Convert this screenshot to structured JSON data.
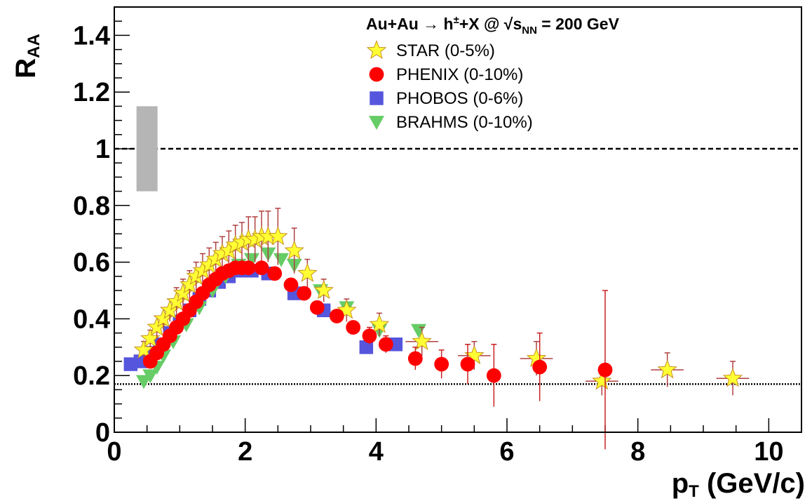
{
  "chart_data": {
    "type": "scatter",
    "title": "",
    "legend_header": "Au+Au → h±+X  @ √sNN = 200 GeV",
    "legend_header_parts": {
      "main": "Au+Au → h",
      "sup": "±",
      "mid": "+X  @ √",
      "s": "s",
      "sub": "NN",
      "end": " = 200 GeV"
    },
    "legend_position": "top-right",
    "xlabel": "p",
    "xlabel_sub": "T",
    "xlabel_units": " (GeV/c)",
    "ylabel": "R",
    "ylabel_sub": "AA",
    "xlim": [
      0,
      10.5
    ],
    "ylim": [
      0,
      1.5
    ],
    "x_ticks": [
      0,
      2,
      4,
      6,
      8,
      10
    ],
    "x_tick_labels": [
      "0",
      "2",
      "4",
      "6",
      "8",
      "10"
    ],
    "y_ticks": [
      0,
      0.2,
      0.4,
      0.6,
      0.8,
      1,
      1.2,
      1.4
    ],
    "y_tick_labels": [
      "0",
      "0.2",
      "0.4",
      "0.6",
      "0.8",
      "1",
      "1.2",
      "1.4"
    ],
    "grid": false,
    "reference_lines": [
      {
        "y": 1.0,
        "style": "dashed"
      },
      {
        "y": 0.17,
        "style": "dotted"
      }
    ],
    "normalization_band": {
      "x": 0.5,
      "y_low": 0.85,
      "y_high": 1.15,
      "color": "#b5b5b5"
    },
    "series": [
      {
        "name": "STAR (0-5%)",
        "marker": "star",
        "color": "#ffff33",
        "x": [
          0.45,
          0.55,
          0.65,
          0.75,
          0.85,
          0.95,
          1.05,
          1.15,
          1.25,
          1.35,
          1.45,
          1.55,
          1.65,
          1.75,
          1.85,
          1.95,
          2.05,
          2.15,
          2.25,
          2.35,
          2.5,
          2.75,
          2.95,
          3.2,
          3.55,
          4.05,
          4.7,
          5.5,
          6.45,
          7.45,
          8.45,
          9.45
        ],
        "y": [
          0.29,
          0.33,
          0.37,
          0.4,
          0.43,
          0.46,
          0.49,
          0.52,
          0.55,
          0.57,
          0.59,
          0.61,
          0.63,
          0.64,
          0.66,
          0.67,
          0.68,
          0.68,
          0.69,
          0.69,
          0.69,
          0.64,
          0.56,
          0.5,
          0.43,
          0.38,
          0.32,
          0.27,
          0.26,
          0.18,
          0.22,
          0.19
        ],
        "err": [
          0.03,
          0.03,
          0.04,
          0.04,
          0.04,
          0.05,
          0.05,
          0.05,
          0.05,
          0.06,
          0.06,
          0.06,
          0.06,
          0.07,
          0.07,
          0.07,
          0.08,
          0.08,
          0.09,
          0.09,
          0.1,
          0.08,
          0.05,
          0.04,
          0.04,
          0.04,
          0.05,
          0.05,
          0.06,
          0.05,
          0.06,
          0.06
        ],
        "xerr": [
          0,
          0,
          0,
          0,
          0,
          0,
          0,
          0,
          0,
          0,
          0,
          0,
          0,
          0,
          0,
          0,
          0,
          0,
          0,
          0,
          0,
          0,
          0,
          0,
          0,
          0,
          0.25,
          0.25,
          0.25,
          0.25,
          0.25,
          0.25
        ]
      },
      {
        "name": "PHENIX (0-10%)",
        "marker": "circle",
        "color": "#ff0000",
        "x": [
          0.55,
          0.65,
          0.75,
          0.85,
          0.95,
          1.05,
          1.15,
          1.25,
          1.35,
          1.45,
          1.55,
          1.65,
          1.75,
          1.85,
          1.95,
          2.05,
          2.25,
          2.45,
          2.7,
          2.9,
          3.1,
          3.4,
          3.65,
          3.9,
          4.15,
          4.6,
          5.0,
          5.4,
          5.8,
          6.5,
          7.5
        ],
        "y": [
          0.25,
          0.28,
          0.31,
          0.34,
          0.37,
          0.4,
          0.43,
          0.46,
          0.49,
          0.52,
          0.54,
          0.56,
          0.57,
          0.58,
          0.58,
          0.58,
          0.58,
          0.56,
          0.52,
          0.49,
          0.44,
          0.41,
          0.37,
          0.34,
          0.31,
          0.26,
          0.24,
          0.24,
          0.2,
          0.23,
          0.22
        ],
        "err": [
          0.01,
          0.01,
          0.01,
          0.01,
          0.01,
          0.01,
          0.01,
          0.01,
          0.01,
          0.01,
          0.01,
          0.01,
          0.01,
          0.01,
          0.01,
          0.01,
          0.01,
          0.01,
          0.01,
          0.02,
          0.02,
          0.02,
          0.02,
          0.03,
          0.03,
          0.04,
          0.05,
          0.07,
          0.11,
          0.12,
          0.28
        ]
      },
      {
        "name": "PHOBOS (0-6%)",
        "marker": "square",
        "color": "#5555dd",
        "x": [
          0.25,
          0.4,
          0.55,
          0.7,
          0.85,
          1.0,
          1.15,
          1.3,
          1.45,
          1.6,
          1.75,
          1.9,
          2.1,
          2.35,
          2.75,
          3.2,
          3.85,
          4.3
        ],
        "y": [
          0.24,
          0.25,
          0.28,
          0.31,
          0.35,
          0.39,
          0.43,
          0.47,
          0.5,
          0.53,
          0.55,
          0.57,
          0.57,
          0.56,
          0.49,
          0.43,
          0.3,
          0.31
        ]
      },
      {
        "name": "BRAHMS (0-10%)",
        "marker": "triangle-down",
        "color": "#66cc66",
        "x": [
          0.45,
          0.55,
          0.65,
          0.75,
          0.9,
          1.1,
          1.3,
          1.5,
          1.7,
          1.9,
          2.1,
          2.35,
          2.55,
          2.75,
          3.15,
          3.55,
          4.05,
          4.65
        ],
        "y": [
          0.18,
          0.2,
          0.23,
          0.27,
          0.32,
          0.38,
          0.44,
          0.5,
          0.55,
          0.59,
          0.61,
          0.63,
          0.61,
          0.59,
          0.5,
          0.44,
          0.36,
          0.36
        ]
      }
    ]
  }
}
